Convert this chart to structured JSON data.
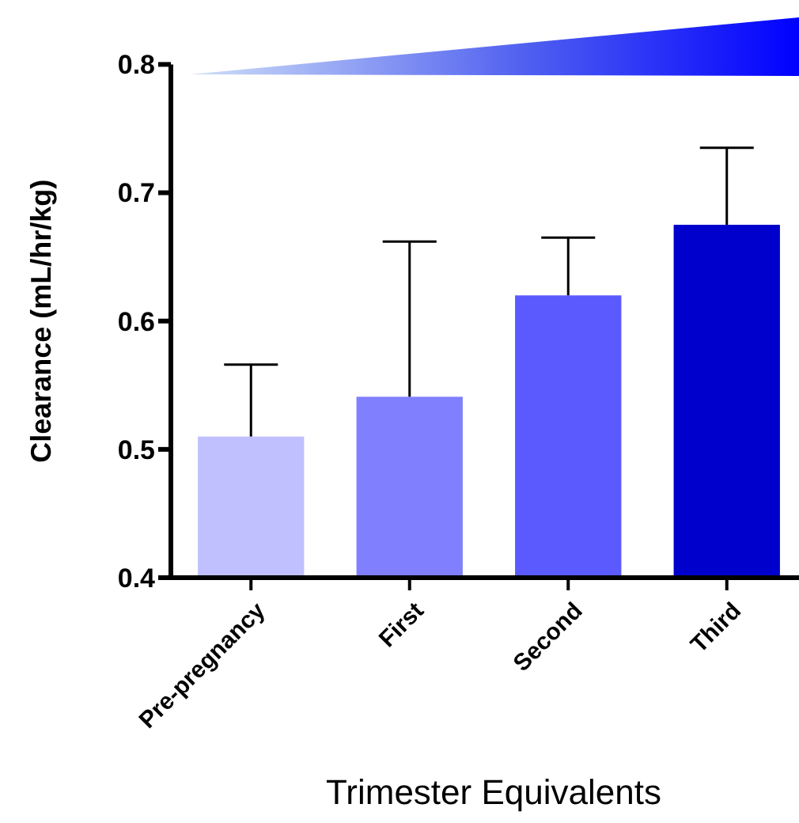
{
  "chart_data": {
    "type": "bar",
    "xlabel": "Trimester Equivalents",
    "ylabel": "Clearance (mL/hr/kg)",
    "categories": [
      "Pre-pregnancy",
      "First",
      "Second",
      "Third"
    ],
    "values": [
      0.51,
      0.541,
      0.62,
      0.675
    ],
    "colors": [
      "#c0c0ff",
      "#8080ff",
      "#5a5aff",
      "#0000cc"
    ],
    "errors": [
      [
        0.51,
        0.566
      ],
      [
        0.541,
        0.662
      ],
      [
        0.62,
        0.665
      ],
      [
        0.675,
        0.735
      ]
    ],
    "ylim": [
      0.4,
      0.8
    ],
    "yticks": [
      0.4,
      0.5,
      0.6,
      0.7,
      0.8
    ],
    "grid": false
  }
}
